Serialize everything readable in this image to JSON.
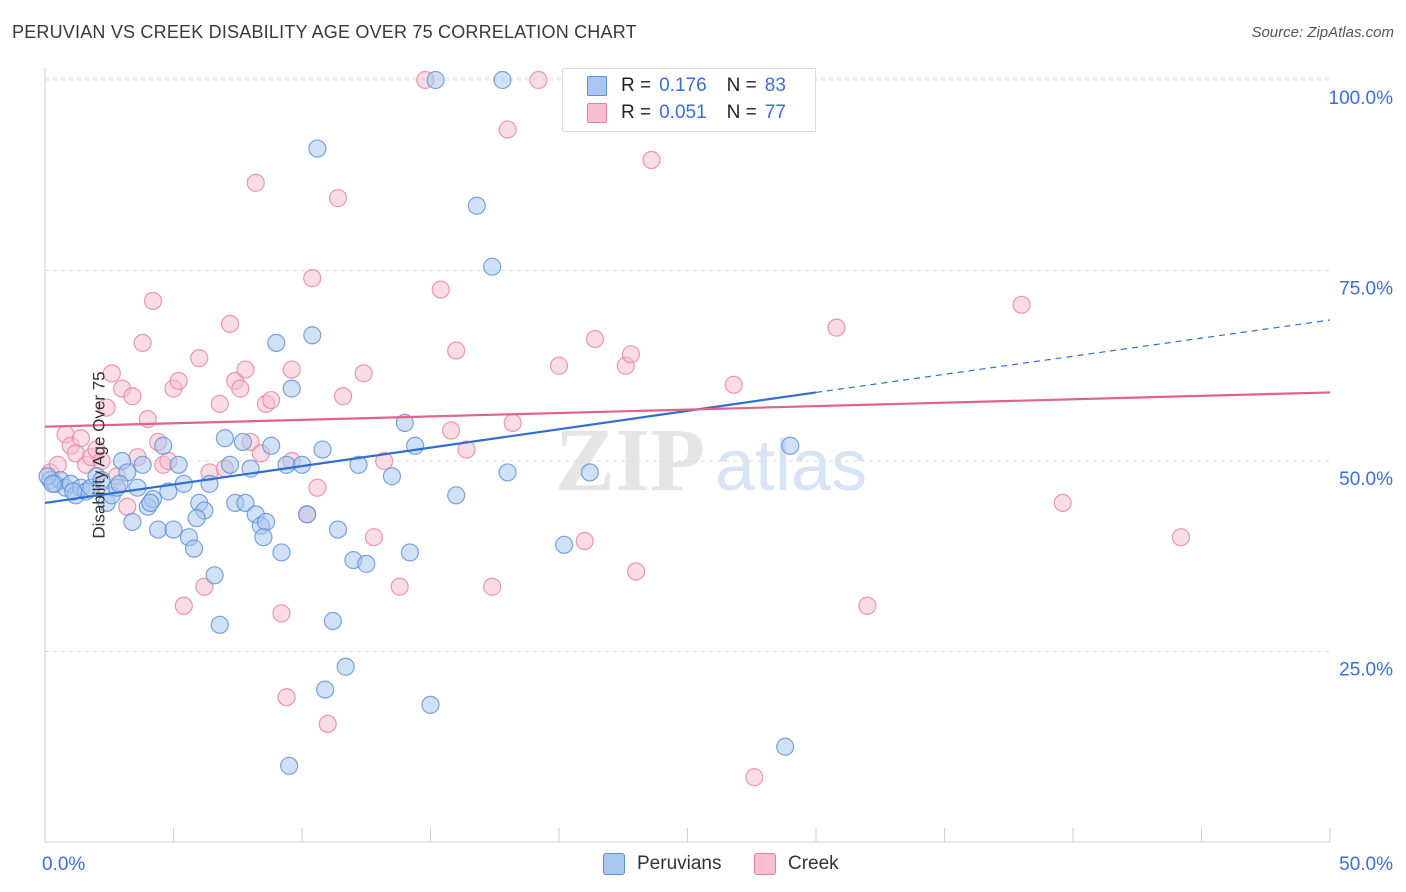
{
  "title": "PERUVIAN VS CREEK DISABILITY AGE OVER 75 CORRELATION CHART",
  "source": "Source: ZipAtlas.com",
  "watermark": "ZIPatlas",
  "colors": {
    "blue": "#5b8fd6",
    "blue_fill": "#a9c6ee",
    "blue_line": "#2e6fd0",
    "pink": "#e77fa0",
    "pink_fill": "#f5bfd0",
    "pink_line": "#e0638a",
    "axis_text": "#3a6fd8"
  },
  "legend": {
    "rows": [
      {
        "r_label": "R =",
        "r_value": "0.176",
        "n_label": "N =",
        "n_value": "83"
      },
      {
        "r_label": "R =",
        "r_value": "0.051",
        "n_label": "N =",
        "n_value": "77"
      }
    ]
  },
  "bottom_legend": [
    "Peruvians",
    "Creek"
  ],
  "chart_data": {
    "type": "scatter",
    "xlabel": "",
    "ylabel": "Disability Age Over 75",
    "xlim": [
      0,
      50
    ],
    "ylim": [
      0,
      105
    ],
    "x_tick_labels": [
      "0.0%",
      "50.0%"
    ],
    "y_tick_labels": [
      "25.0%",
      "50.0%",
      "75.0%",
      "100.0%"
    ],
    "y_ticks": [
      25,
      50,
      75,
      100
    ],
    "series": [
      {
        "name": "Peruvians",
        "trend": {
          "x0": 0,
          "y0": 44.5,
          "x1": 30,
          "y1": 59,
          "dashed_to_x": 50,
          "dashed_to_y": 68.5
        },
        "points": [
          [
            0.2,
            47.5
          ],
          [
            0.4,
            47.0
          ],
          [
            0.6,
            47.5
          ],
          [
            0.8,
            46.5
          ],
          [
            1.0,
            47.0
          ],
          [
            1.2,
            45.5
          ],
          [
            1.4,
            46.5
          ],
          [
            1.6,
            46.0
          ],
          [
            1.8,
            46.5
          ],
          [
            2.0,
            48.0
          ],
          [
            2.2,
            47.5
          ],
          [
            2.4,
            44.5
          ],
          [
            2.6,
            45.5
          ],
          [
            2.8,
            46.5
          ],
          [
            3.0,
            50.0
          ],
          [
            3.2,
            48.5
          ],
          [
            3.4,
            42.0
          ],
          [
            3.6,
            46.5
          ],
          [
            3.8,
            49.5
          ],
          [
            4.0,
            44.0
          ],
          [
            4.2,
            45.0
          ],
          [
            4.4,
            41.0
          ],
          [
            4.6,
            52.0
          ],
          [
            4.8,
            46.0
          ],
          [
            5.0,
            41.0
          ],
          [
            5.2,
            49.5
          ],
          [
            5.4,
            47.0
          ],
          [
            5.6,
            40.0
          ],
          [
            5.8,
            38.5
          ],
          [
            6.0,
            44.5
          ],
          [
            6.2,
            43.5
          ],
          [
            6.4,
            47.0
          ],
          [
            6.6,
            35.0
          ],
          [
            6.8,
            28.5
          ],
          [
            7.0,
            53.0
          ],
          [
            7.2,
            49.5
          ],
          [
            7.4,
            44.5
          ],
          [
            7.8,
            44.5
          ],
          [
            8.0,
            49.0
          ],
          [
            8.2,
            43.0
          ],
          [
            8.4,
            41.5
          ],
          [
            8.6,
            42.0
          ],
          [
            8.8,
            52.0
          ],
          [
            9.0,
            65.5
          ],
          [
            9.2,
            38.0
          ],
          [
            9.4,
            49.5
          ],
          [
            9.6,
            59.5
          ],
          [
            10.0,
            49.5
          ],
          [
            10.2,
            43.0
          ],
          [
            10.4,
            66.5
          ],
          [
            10.6,
            91.0
          ],
          [
            10.8,
            51.5
          ],
          [
            10.9,
            20.0
          ],
          [
            11.2,
            29.0
          ],
          [
            11.4,
            41.0
          ],
          [
            11.7,
            23.0
          ],
          [
            12.0,
            37.0
          ],
          [
            12.2,
            49.5
          ],
          [
            12.5,
            36.5
          ],
          [
            9.5,
            10.0
          ],
          [
            13.5,
            48.0
          ],
          [
            14.0,
            55.0
          ],
          [
            14.2,
            38.0
          ],
          [
            14.4,
            52.0
          ],
          [
            15.0,
            18.0
          ],
          [
            16.0,
            45.5
          ],
          [
            16.8,
            83.5
          ],
          [
            17.4,
            75.5
          ],
          [
            18.0,
            48.5
          ],
          [
            15.2,
            100.0
          ],
          [
            17.8,
            100.0
          ],
          [
            20.2,
            39.0
          ],
          [
            21.2,
            48.5
          ],
          [
            29.0,
            52.0
          ],
          [
            28.8,
            12.5
          ],
          [
            0.1,
            48.0
          ],
          [
            0.3,
            47.0
          ],
          [
            1.1,
            46.0
          ],
          [
            2.9,
            47.0
          ],
          [
            5.9,
            42.5
          ],
          [
            7.7,
            52.5
          ],
          [
            8.5,
            40.0
          ],
          [
            4.1,
            44.5
          ]
        ]
      },
      {
        "name": "Creek",
        "trend": {
          "x0": 0,
          "y0": 54.5,
          "x1": 50,
          "y1": 59
        },
        "points": [
          [
            0.2,
            48.5
          ],
          [
            0.5,
            49.5
          ],
          [
            0.8,
            53.5
          ],
          [
            1.0,
            52.0
          ],
          [
            1.2,
            51.0
          ],
          [
            1.4,
            53.0
          ],
          [
            1.6,
            49.5
          ],
          [
            1.8,
            50.5
          ],
          [
            2.0,
            51.5
          ],
          [
            2.2,
            50.0
          ],
          [
            2.4,
            57.0
          ],
          [
            2.6,
            61.5
          ],
          [
            2.8,
            48.0
          ],
          [
            3.0,
            59.5
          ],
          [
            3.2,
            44.0
          ],
          [
            3.4,
            58.5
          ],
          [
            3.6,
            50.5
          ],
          [
            3.8,
            65.5
          ],
          [
            4.0,
            55.5
          ],
          [
            4.2,
            71.0
          ],
          [
            4.4,
            52.5
          ],
          [
            4.6,
            49.5
          ],
          [
            4.8,
            50.0
          ],
          [
            5.0,
            59.5
          ],
          [
            5.2,
            60.5
          ],
          [
            5.4,
            31.0
          ],
          [
            6.0,
            63.5
          ],
          [
            6.2,
            33.5
          ],
          [
            6.4,
            48.5
          ],
          [
            6.8,
            57.5
          ],
          [
            7.0,
            49.0
          ],
          [
            7.2,
            68.0
          ],
          [
            7.4,
            60.5
          ],
          [
            7.6,
            59.5
          ],
          [
            7.8,
            62.0
          ],
          [
            8.0,
            52.5
          ],
          [
            8.2,
            86.5
          ],
          [
            8.4,
            51.0
          ],
          [
            8.6,
            57.5
          ],
          [
            8.8,
            58.0
          ],
          [
            9.2,
            30.0
          ],
          [
            9.4,
            19.0
          ],
          [
            9.6,
            50.0
          ],
          [
            10.2,
            43.0
          ],
          [
            10.4,
            74.0
          ],
          [
            10.6,
            46.5
          ],
          [
            11.0,
            15.5
          ],
          [
            11.4,
            84.5
          ],
          [
            11.6,
            58.5
          ],
          [
            12.4,
            61.5
          ],
          [
            12.8,
            40.0
          ],
          [
            13.2,
            50.0
          ],
          [
            13.8,
            33.5
          ],
          [
            14.8,
            100.0
          ],
          [
            15.4,
            72.5
          ],
          [
            15.8,
            54.0
          ],
          [
            16.0,
            64.5
          ],
          [
            16.4,
            51.5
          ],
          [
            17.4,
            33.5
          ],
          [
            18.0,
            93.5
          ],
          [
            18.2,
            55.0
          ],
          [
            19.2,
            100.0
          ],
          [
            20.0,
            62.5
          ],
          [
            21.0,
            39.5
          ],
          [
            21.4,
            66.0
          ],
          [
            22.6,
            62.5
          ],
          [
            23.0,
            35.5
          ],
          [
            23.6,
            89.5
          ],
          [
            26.8,
            60.0
          ],
          [
            27.6,
            8.5
          ],
          [
            30.8,
            67.5
          ],
          [
            32.0,
            31.0
          ],
          [
            38.0,
            70.5
          ],
          [
            39.6,
            44.5
          ],
          [
            44.2,
            40.0
          ],
          [
            22.8,
            64.0
          ],
          [
            9.6,
            62.0
          ]
        ]
      }
    ]
  }
}
